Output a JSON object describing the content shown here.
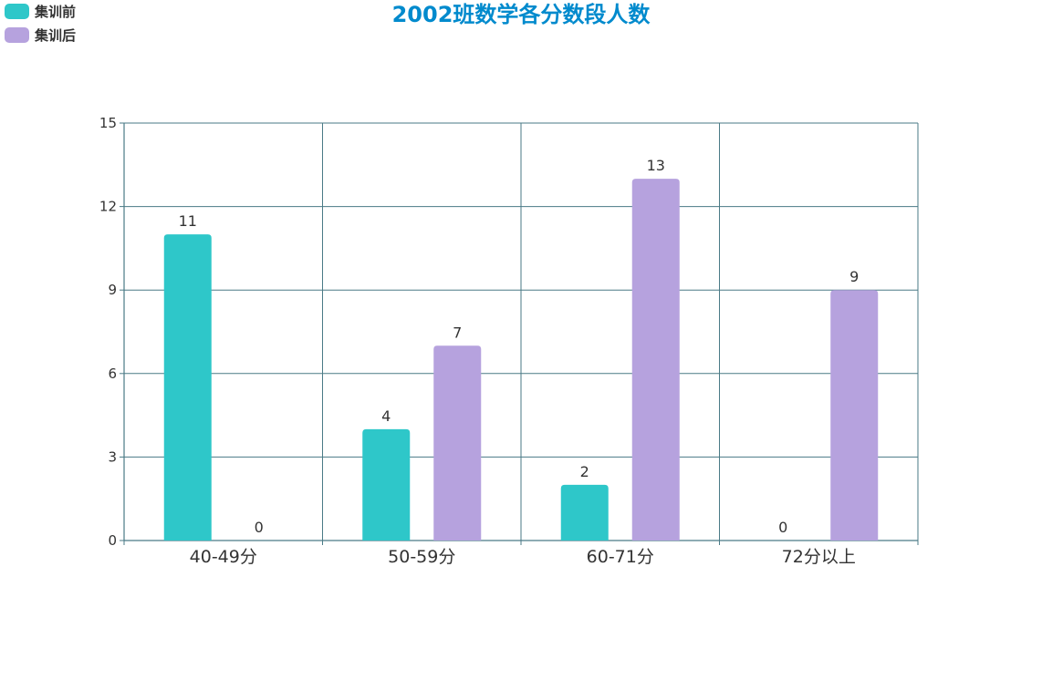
{
  "chart_data": {
    "type": "bar",
    "title": "2002班数学各分数段人数",
    "xlabel": "",
    "ylabel": "",
    "categories": [
      "40-49分",
      "50-59分",
      "60-71分",
      "72分以上"
    ],
    "series": [
      {
        "name": "集训前",
        "values": [
          11,
          4,
          2,
          0
        ],
        "color": "#2ec7c9"
      },
      {
        "name": "集训后",
        "values": [
          0,
          7,
          13,
          9
        ],
        "color": "#b6a2de"
      }
    ],
    "ylim": [
      0,
      15
    ],
    "yticks": [
      0,
      3,
      6,
      9,
      12,
      15
    ],
    "grid": true,
    "legend_position": "top-left",
    "title_color": "#008acd",
    "axis_color": "#4a7a86",
    "grid_color": "#4a7a86",
    "show_data_labels": true
  }
}
